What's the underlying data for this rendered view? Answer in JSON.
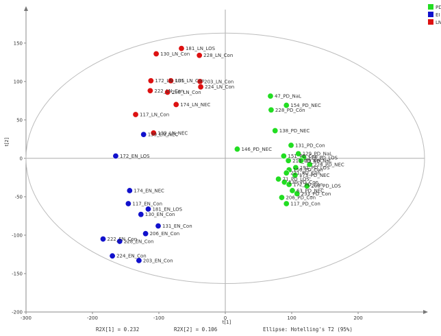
{
  "chart_data": {
    "type": "scatter",
    "title": "",
    "xlabel": "t[1]",
    "ylabel": "t[2]",
    "xlim": [
      -300,
      300
    ],
    "ylim": [
      -200,
      190
    ],
    "x_ticks": [
      -300,
      -200,
      -100,
      0,
      100,
      200
    ],
    "y_ticks": [
      -200,
      -150,
      -100,
      -50,
      0,
      50,
      100,
      150
    ],
    "grid": false,
    "legend_position": "top-right",
    "ellipse": {
      "a": 300,
      "b": 163
    },
    "footer": {
      "r2x1": "R2X[1] = 0.232",
      "r2x2": "R2X[2] = 0.106",
      "ellipse_label": "Ellipse: Hotelling's T2 (95%)"
    },
    "series": [
      {
        "name": "PD",
        "legend_text": "PD",
        "color": "#22dd22",
        "points": [
          {
            "label": "47_PD_NaL",
            "x": 68,
            "y": 81
          },
          {
            "label": "154_PD_NEC",
            "x": 92,
            "y": 69
          },
          {
            "label": "228_PD_Con",
            "x": 69,
            "y": 63
          },
          {
            "label": "138_PD_NEC",
            "x": 75,
            "y": 36
          },
          {
            "label": "146_PD_NEC",
            "x": 18,
            "y": 12
          },
          {
            "label": "131_PD_Con",
            "x": 99,
            "y": 17
          },
          {
            "label": "151_PD_Con",
            "x": 88,
            "y": 3
          },
          {
            "label": "129_PD_NaL",
            "x": 110,
            "y": 6
          },
          {
            "label": "114_PD_LOS",
            "x": 118,
            "y": 1
          },
          {
            "label": "213_PD_NEC",
            "x": 95,
            "y": -3
          },
          {
            "label": "29_PD_NaL",
            "x": 114,
            "y": -3
          },
          {
            "label": "224_PD_NEC",
            "x": 127,
            "y": -8
          },
          {
            "label": "191_PD_LOS",
            "x": 106,
            "y": -12
          },
          {
            "label": "156_PD_Con",
            "x": 96,
            "y": -15
          },
          {
            "label": "221_PD_Con",
            "x": 92,
            "y": -19
          },
          {
            "label": "173_PD_NEC",
            "x": 105,
            "y": -22
          },
          {
            "label": "71_PD_LOS",
            "x": 80,
            "y": -27
          },
          {
            "label": "130_PD_Con",
            "x": 89,
            "y": -31
          },
          {
            "label": "172_PD_Con",
            "x": 96,
            "y": -34
          },
          {
            "label": "208_PD_LOS",
            "x": 123,
            "y": -36
          },
          {
            "label": "63_PD_NEC",
            "x": 101,
            "y": -42
          },
          {
            "label": "233_PD_Con",
            "x": 108,
            "y": -46
          },
          {
            "label": "206_PD_Con",
            "x": 85,
            "y": -51
          },
          {
            "label": "117_PD_Con",
            "x": 92,
            "y": -59
          }
        ]
      },
      {
        "name": "EN",
        "legend_text": "EI",
        "color": "#1111cc",
        "points": [
          {
            "label": "139_EN_NEC",
            "x": -123,
            "y": 31
          },
          {
            "label": "172_EN_LOS",
            "x": -165,
            "y": 3
          },
          {
            "label": "174_EN_NEC",
            "x": -144,
            "y": -42
          },
          {
            "label": "117_EN_Con",
            "x": -146,
            "y": -59
          },
          {
            "label": "181_EN_LOS",
            "x": -116,
            "y": -66
          },
          {
            "label": "130_EN_Con",
            "x": -127,
            "y": -73
          },
          {
            "label": "131_EN_Con",
            "x": -101,
            "y": -88
          },
          {
            "label": "206_EN_Con",
            "x": -120,
            "y": -98
          },
          {
            "label": "222_EN_Con",
            "x": -184,
            "y": -105
          },
          {
            "label": "228_EN_Con",
            "x": -159,
            "y": -108
          },
          {
            "label": "224_EN_Con",
            "x": -170,
            "y": -127
          },
          {
            "label": "203_EN_Con",
            "x": -130,
            "y": -133
          }
        ]
      },
      {
        "name": "LN",
        "legend_text": "LN",
        "color": "#dd1111",
        "points": [
          {
            "label": "181_LN_LOS",
            "x": -66,
            "y": 143
          },
          {
            "label": "130_LN_Con",
            "x": -104,
            "y": 136
          },
          {
            "label": "228_LN_Con",
            "x": -39,
            "y": 134
          },
          {
            "label": "172_LN_LOS",
            "x": -112,
            "y": 101
          },
          {
            "label": "131_LN_Con",
            "x": -82,
            "y": 101
          },
          {
            "label": "203_LN_Con",
            "x": -38,
            "y": 100
          },
          {
            "label": "224_LN_Con",
            "x": -37,
            "y": 93
          },
          {
            "label": "222_LN_Con",
            "x": -113,
            "y": 88
          },
          {
            "label": "206_LN_Con",
            "x": -87,
            "y": 86
          },
          {
            "label": "174_LN_NEC",
            "x": -74,
            "y": 70
          },
          {
            "label": "117_LN_Con",
            "x": -135,
            "y": 57
          },
          {
            "label": "139_LN_NEC",
            "x": -108,
            "y": 33
          }
        ]
      }
    ]
  }
}
